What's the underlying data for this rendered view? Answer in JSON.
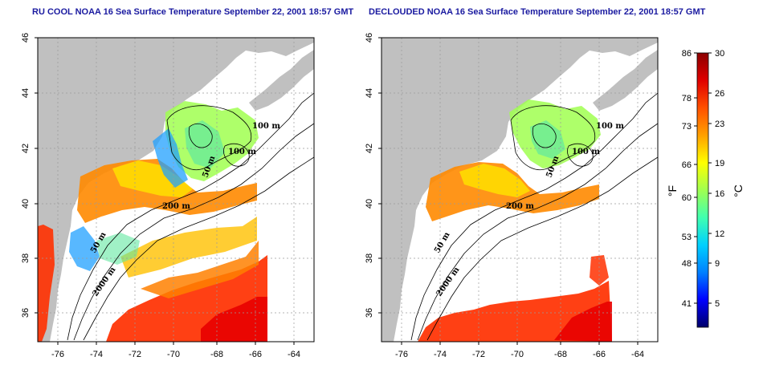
{
  "panels": [
    {
      "id": "ru-cool",
      "title": "RU COOL NOAA 16 Sea Surface Temperature September 22, 2001 18:57 GMT",
      "contour_labels": [
        "100 m",
        "100 m",
        "50 m",
        "200 m",
        "50 m",
        "2000 m"
      ]
    },
    {
      "id": "declouded",
      "title": "DECLOUDED NOAA 16 Sea Surface Temperature September 22, 2001 18:57 GMT",
      "contour_labels": [
        "100 m",
        "100 m",
        "50 m",
        "200 m",
        "50 m",
        "2000 m"
      ]
    }
  ],
  "axes": {
    "lon_ticks": [
      "-76",
      "-74",
      "-72",
      "-70",
      "-68",
      "-66",
      "-64"
    ],
    "lat_ticks": [
      "36",
      "38",
      "40",
      "42",
      "44",
      "46"
    ]
  },
  "colorbar": {
    "fahrenheit_label": "°F",
    "celsius_label": "°C",
    "fahrenheit_ticks": [
      "86",
      "78",
      "73",
      "66",
      "60",
      "53",
      "48",
      "41"
    ],
    "celsius_ticks": [
      "30",
      "26",
      "23",
      "19",
      "16",
      "12",
      "9",
      "5"
    ],
    "colors": [
      "#00006a",
      "#0000ff",
      "#0080ff",
      "#00d0ff",
      "#40ffb0",
      "#a0ff50",
      "#ffff00",
      "#ffa000",
      "#ff5000",
      "#e00000",
      "#8b0000"
    ]
  },
  "colors": {
    "land": "#c0c0c0",
    "frame": "#000000",
    "title": "#1a1aa0",
    "grid": "#9a9a9a"
  }
}
